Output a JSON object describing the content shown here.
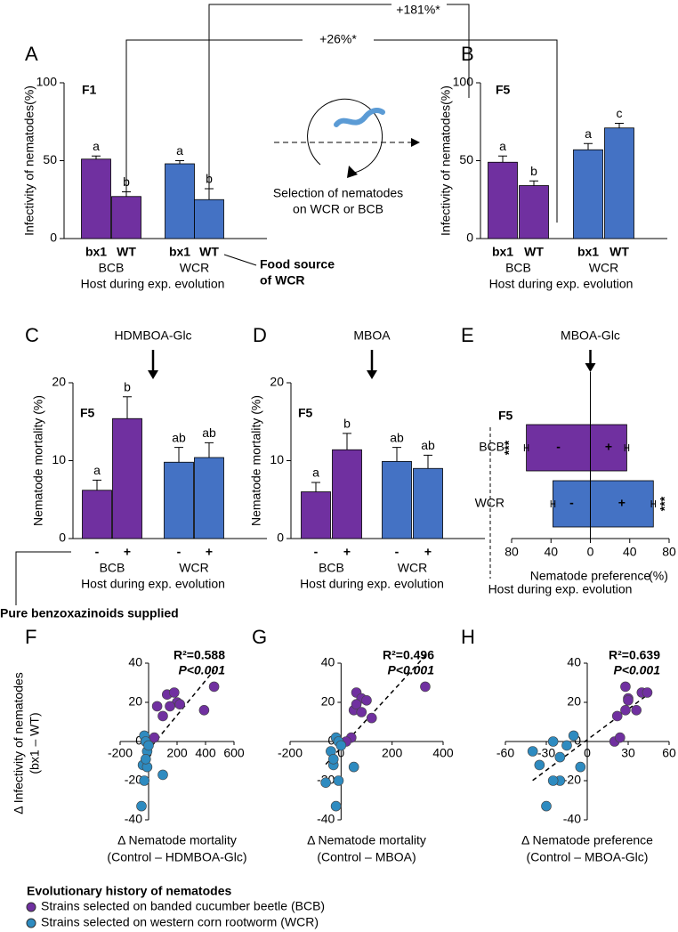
{
  "figure": {
    "bracket_outer": "+181%*",
    "bracket_inner": "+26%*",
    "selection_note": [
      "Selection of nematodes",
      "on WCR or BCB"
    ],
    "food_source": [
      "Food source",
      "of WCR"
    ],
    "supplied_note": "Pure benzoxazinoids supplied",
    "scatter_ylabel": [
      "Δ Infectivity of nematodes",
      "(bx1 – WT)"
    ],
    "legend_title": "Evolutionary history of nematodes"
  },
  "chart_data": [
    {
      "type": "bar",
      "panel": "A",
      "label": "F1",
      "ylabel": "Infectivity of nematodes(%)",
      "xlabel": "Host during exp. evolution",
      "groups": [
        "BCB",
        "WCR"
      ],
      "categories": [
        "bx1",
        "WT",
        "bx1",
        "WT"
      ],
      "values": [
        51,
        27,
        48,
        25
      ],
      "errors": [
        2,
        3,
        2,
        7
      ],
      "letters": [
        "a",
        "b",
        "a",
        "b"
      ],
      "colors": [
        "#7030a0",
        "#7030a0",
        "#4472c4",
        "#4472c4"
      ],
      "ylim": [
        0,
        100
      ],
      "yticks": [
        0,
        50,
        100
      ]
    },
    {
      "type": "bar",
      "panel": "B",
      "label": "F5",
      "ylabel": "Infectivity of nematodes(%)",
      "xlabel": "Host during exp. evolution",
      "groups": [
        "BCB",
        "WCR"
      ],
      "categories": [
        "bx1",
        "WT",
        "bx1",
        "WT"
      ],
      "values": [
        49,
        34,
        57,
        71
      ],
      "errors": [
        4,
        3,
        4,
        3
      ],
      "letters": [
        "a",
        "b",
        "a",
        "c"
      ],
      "colors": [
        "#7030a0",
        "#7030a0",
        "#4472c4",
        "#4472c4"
      ],
      "ylim": [
        0,
        100
      ],
      "yticks": [
        0,
        50,
        100
      ]
    },
    {
      "type": "bar",
      "panel": "C",
      "label": "F5",
      "compound": "HDMBOA-Glc",
      "ylabel": "Nematode mortality (%)",
      "xlabel": "Host during exp. evolution",
      "groups": [
        "BCB",
        "WCR"
      ],
      "categories": [
        "-",
        "+",
        "-",
        "+"
      ],
      "values": [
        6.2,
        15.4,
        9.8,
        10.4
      ],
      "errors": [
        1.3,
        2.8,
        1.9,
        1.9
      ],
      "letters": [
        "a",
        "b",
        "ab",
        "ab"
      ],
      "colors": [
        "#7030a0",
        "#7030a0",
        "#4472c4",
        "#4472c4"
      ],
      "ylim": [
        0,
        20
      ],
      "yticks": [
        0,
        10,
        20
      ]
    },
    {
      "type": "bar",
      "panel": "D",
      "label": "F5",
      "compound": "MBOA",
      "ylabel": "Nematode mortality (%)",
      "xlabel": "Host during exp. evolution",
      "groups": [
        "BCB",
        "WCR"
      ],
      "categories": [
        "-",
        "+",
        "-",
        "+"
      ],
      "values": [
        6.0,
        11.4,
        9.9,
        9.0
      ],
      "errors": [
        1.2,
        2.1,
        1.8,
        1.7
      ],
      "letters": [
        "a",
        "b",
        "ab",
        "ab"
      ],
      "colors": [
        "#7030a0",
        "#7030a0",
        "#4472c4",
        "#4472c4"
      ],
      "ylim": [
        0,
        20
      ],
      "yticks": [
        0,
        10,
        20
      ]
    },
    {
      "type": "hbar",
      "panel": "E",
      "label": "F5",
      "compound": "MBOA-Glc",
      "xlabel": "Nematode preference",
      "xunit": "(%)",
      "ylabel": "Host during exp. evolution",
      "categories": [
        "BCB",
        "WCR"
      ],
      "colors": [
        "#7030a0",
        "#4472c4"
      ],
      "significance": [
        "***",
        "***"
      ],
      "series": [
        {
          "name": "-",
          "values": [
            -65,
            -38
          ],
          "errors": [
            2,
            2
          ]
        },
        {
          "name": "+",
          "values": [
            37,
            64
          ],
          "errors": [
            2,
            2
          ]
        }
      ],
      "xlim": [
        -80,
        80
      ],
      "xticks": [
        {
          "value": -80,
          "label": "80"
        },
        {
          "value": -40,
          "label": "40"
        },
        0,
        40,
        80
      ]
    },
    {
      "type": "scatter",
      "panel": "F",
      "r2": "R²=0.588",
      "p": "P<0.001",
      "xlabel": [
        "Δ Nematode mortality",
        "(Control – HDMBOA-Glc)"
      ],
      "xlim": [
        -200,
        600
      ],
      "xticks": [
        -200,
        0,
        200,
        400,
        600
      ],
      "ylim": [
        -40,
        40
      ],
      "yticks": [
        -40,
        -20,
        0,
        20,
        40
      ],
      "series": [
        {
          "name": "Strains selected on banded cucumber beetle (BCB)",
          "color": "#7030a0",
          "x": [
            130,
            180,
            200,
            460,
            390,
            100,
            60,
            40,
            150,
            220
          ],
          "values": [
            24,
            25,
            20,
            28,
            16,
            13,
            18,
            2,
            18,
            19
          ]
        },
        {
          "name": "Strains selected on western corn rootworm (WCR)",
          "color": "#2e8bc0",
          "x": [
            -30,
            -20,
            -10,
            -40,
            -30,
            0,
            -10,
            100,
            -50,
            -20
          ],
          "values": [
            3,
            0,
            -5,
            -12,
            -20,
            -2,
            -13,
            -17,
            -33,
            -9
          ]
        }
      ]
    },
    {
      "type": "scatter",
      "panel": "G",
      "r2": "R²=0.496",
      "p": "P<0.001",
      "xlabel": [
        "Δ Nematode mortality",
        "(Control – MBOA)"
      ],
      "xlim": [
        -200,
        400
      ],
      "xticks": [
        -200,
        0,
        200,
        400
      ],
      "ylim": [
        -40,
        40
      ],
      "yticks": [
        -40,
        -20,
        0,
        20,
        40
      ],
      "series": [
        {
          "name": "Strains selected on banded cucumber beetle (BCB)",
          "color": "#7030a0",
          "x": [
            60,
            80,
            100,
            330,
            50,
            60,
            120,
            40,
            80,
            20
          ],
          "values": [
            25,
            22,
            21,
            28,
            16,
            19,
            12,
            2,
            15,
            0
          ]
        },
        {
          "name": "Strains selected on western corn rootworm (WCR)",
          "color": "#2e8bc0",
          "x": [
            -20,
            -10,
            -40,
            -30,
            -10,
            0,
            50,
            -60,
            -20,
            -30
          ],
          "values": [
            2,
            0,
            -5,
            -12,
            -20,
            -2,
            -13,
            -21,
            -33,
            -9
          ]
        }
      ]
    },
    {
      "type": "scatter",
      "panel": "H",
      "r2": "R²=0.639",
      "p": "P<0.001",
      "xlabel": [
        "Δ Nematode preference",
        "(Control – MBOA-Glc)"
      ],
      "xlim": [
        -60,
        60
      ],
      "xticks": [
        -60,
        -30,
        0,
        30,
        60
      ],
      "ylim": [
        -40,
        40
      ],
      "yticks": [
        -40,
        -20,
        0,
        20,
        40
      ],
      "series": [
        {
          "name": "Strains selected on banded cucumber beetle (BCB)",
          "color": "#7030a0",
          "x": [
            28,
            30,
            40,
            44,
            22,
            28,
            36,
            20,
            24,
            30
          ],
          "values": [
            28,
            22,
            25,
            25,
            13,
            16,
            16,
            0,
            2,
            21
          ]
        },
        {
          "name": "Strains selected on western corn rootworm (WCR)",
          "color": "#2e8bc0",
          "x": [
            -10,
            -25,
            -40,
            -35,
            -20,
            -15,
            -5,
            -25,
            -30,
            -20
          ],
          "values": [
            3,
            0,
            -5,
            -12,
            -20,
            -2,
            -13,
            -20,
            -33,
            -8
          ]
        }
      ]
    }
  ]
}
